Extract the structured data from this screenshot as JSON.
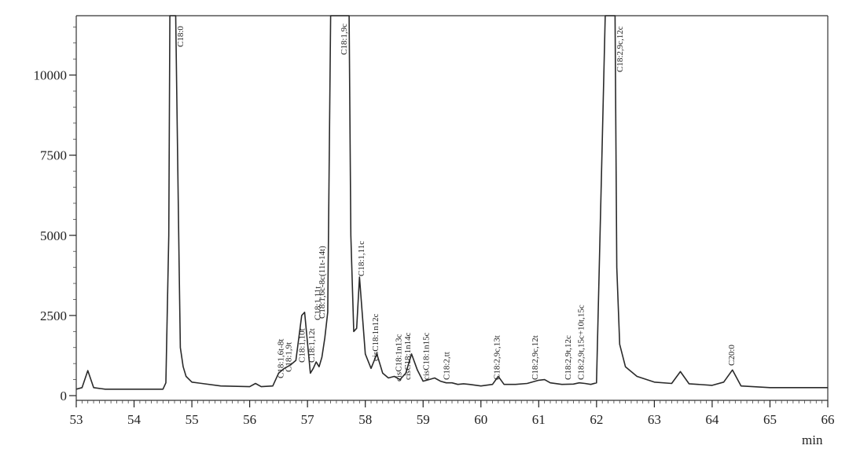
{
  "chart_data": {
    "type": "line",
    "title": "",
    "xlabel": "min",
    "ylabel": "",
    "xlim": [
      53,
      66
    ],
    "ylim": [
      0,
      12000
    ],
    "x_ticks": [
      "53",
      "54",
      "55",
      "56",
      "57",
      "58",
      "59",
      "60",
      "61",
      "62",
      "63",
      "64",
      "65",
      "66"
    ],
    "y_ticks": [
      "0",
      "2500",
      "5000",
      "7500",
      "10000"
    ],
    "grid": false,
    "series": [
      {
        "name": "",
        "x": [
          53.0,
          53.1,
          53.2,
          53.3,
          53.5,
          54.0,
          54.5,
          54.55,
          54.6,
          54.62,
          54.72,
          54.78,
          54.8,
          54.85,
          54.9,
          55.0,
          55.5,
          56.0,
          56.1,
          56.2,
          56.4,
          56.5,
          56.6,
          56.7,
          56.8,
          56.9,
          56.95,
          57.05,
          57.1,
          57.15,
          57.2,
          57.25,
          57.3,
          57.35,
          57.4,
          57.42,
          57.72,
          57.75,
          57.8,
          57.85,
          57.9,
          57.95,
          58.0,
          58.1,
          58.2,
          58.3,
          58.4,
          58.5,
          58.6,
          58.7,
          58.8,
          58.9,
          59.0,
          59.1,
          59.2,
          59.3,
          59.4,
          59.5,
          59.6,
          59.7,
          59.8,
          60.0,
          60.2,
          60.3,
          60.4,
          60.6,
          60.8,
          61.0,
          61.1,
          61.2,
          61.4,
          61.6,
          61.7,
          61.8,
          61.9,
          62.0,
          62.1,
          62.15,
          62.32,
          62.35,
          62.4,
          62.5,
          62.7,
          63.0,
          63.3,
          63.45,
          63.6,
          64.0,
          64.2,
          64.35,
          64.5,
          65.0,
          66.0
        ],
        "values": [
          200,
          250,
          780,
          250,
          200,
          200,
          200,
          400,
          5000,
          12000,
          12000,
          4000,
          1500,
          900,
          600,
          420,
          300,
          280,
          380,
          280,
          300,
          700,
          850,
          950,
          1100,
          2500,
          2600,
          700,
          850,
          1050,
          900,
          1200,
          1800,
          2600,
          12000,
          12000,
          12000,
          5000,
          2000,
          2100,
          3700,
          2500,
          1300,
          850,
          1300,
          700,
          550,
          600,
          500,
          700,
          1300,
          800,
          450,
          500,
          550,
          450,
          400,
          400,
          350,
          370,
          350,
          300,
          350,
          600,
          350,
          350,
          380,
          480,
          500,
          400,
          350,
          360,
          400,
          380,
          350,
          400,
          8000,
          12000,
          12000,
          4000,
          1600,
          900,
          600,
          420,
          380,
          750,
          370,
          320,
          420,
          800,
          300,
          250,
          250
        ]
      }
    ],
    "annotations": [
      "C18:0",
      "C18:1,6t-8t",
      "C18:1,9t",
      "C18:1,10t",
      "C18:1,12t",
      "C18:1,11t",
      "C18:1,6c-8c(11t-14t)",
      "C18:1,9c",
      "C18:1,11c",
      "cisC18:1n12c",
      "cisC18:1n13c",
      "cisC18:1n14c",
      "cisC18:1n15c",
      "C18:2,tt",
      "C18:2,9c,13t",
      "C18:2,9c,12t",
      "C18:2,9t,12c",
      "C18:2,9t,15c+10t,15c",
      "C18:2,9c,12c",
      "C20:0"
    ]
  }
}
